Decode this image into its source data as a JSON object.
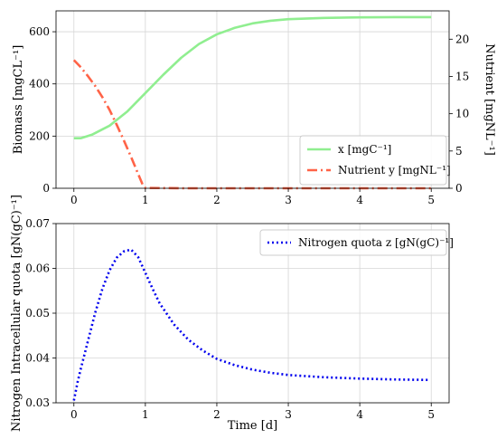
{
  "chart_data": [
    {
      "type": "line",
      "xlim": [
        -0.25,
        5.25
      ],
      "ylim_left": [
        0,
        680
      ],
      "ylim_right": [
        0,
        23.8
      ],
      "xticks": [
        0,
        1,
        2,
        3,
        4,
        5
      ],
      "yticks_left": [
        0,
        200,
        400,
        600
      ],
      "yticks_right": [
        0,
        5,
        10,
        15,
        20
      ],
      "ylabel_left": "Biomass  [mgCL⁻¹]",
      "ylabel_right": "Nutrient  [mgNL⁻¹]",
      "grid": true,
      "legend_position": "lower-right",
      "series": [
        {
          "name": "x [mgC⁻¹]",
          "axis": "left",
          "color": "#90ee90",
          "style": "solid",
          "x": [
            0,
            0.1,
            0.25,
            0.5,
            0.75,
            1.0,
            1.25,
            1.5,
            1.75,
            2.0,
            2.25,
            2.5,
            2.75,
            3.0,
            3.5,
            4.0,
            4.5,
            5.0
          ],
          "y": [
            192,
            192,
            205,
            240,
            295,
            365,
            435,
            500,
            553,
            590,
            615,
            632,
            642,
            648,
            653,
            655,
            656,
            656
          ]
        },
        {
          "name": "Nutrient y [mgNL⁻¹]",
          "axis": "right",
          "color": "#ff6347",
          "style": "dashdot",
          "x": [
            0,
            0.1,
            0.2,
            0.3,
            0.4,
            0.5,
            0.6,
            0.7,
            0.8,
            0.9,
            0.97,
            1.0,
            1.5,
            2.0,
            3.0,
            4.0,
            5.0
          ],
          "y": [
            17.2,
            16.2,
            15.0,
            13.7,
            12.2,
            10.5,
            8.5,
            6.4,
            4.2,
            1.9,
            0.3,
            0.05,
            0,
            0,
            0,
            0,
            0
          ]
        }
      ]
    },
    {
      "type": "line",
      "xlim": [
        -0.25,
        5.25
      ],
      "ylim": [
        0.03,
        0.07
      ],
      "xticks": [
        0,
        1,
        2,
        3,
        4,
        5
      ],
      "yticks": [
        0.03,
        0.04,
        0.05,
        0.06,
        0.07
      ],
      "ytick_labels": [
        "0.03",
        "0.04",
        "0.05",
        "0.06",
        "0.07"
      ],
      "xlabel": "Time [d]",
      "ylabel": "Nitrogen Intracellular quota [gN(gC)⁻¹]",
      "grid": true,
      "legend_position": "upper-right",
      "series": [
        {
          "name": "Nitrogen quota z [gN(gC)⁻¹]",
          "color": "#0000ee",
          "style": "dotted",
          "x": [
            0,
            0.05,
            0.1,
            0.2,
            0.3,
            0.4,
            0.5,
            0.6,
            0.7,
            0.8,
            0.9,
            1.0,
            1.1,
            1.2,
            1.4,
            1.6,
            1.8,
            2.0,
            2.25,
            2.5,
            2.75,
            3.0,
            3.5,
            4.0,
            4.5,
            4.95
          ],
          "y": [
            0.0305,
            0.0345,
            0.0378,
            0.044,
            0.0502,
            0.0555,
            0.0596,
            0.0624,
            0.0638,
            0.0642,
            0.0625,
            0.059,
            0.0555,
            0.0522,
            0.0475,
            0.0441,
            0.0417,
            0.0398,
            0.0384,
            0.0374,
            0.0367,
            0.0362,
            0.0357,
            0.0354,
            0.0352,
            0.0351
          ]
        }
      ]
    }
  ]
}
